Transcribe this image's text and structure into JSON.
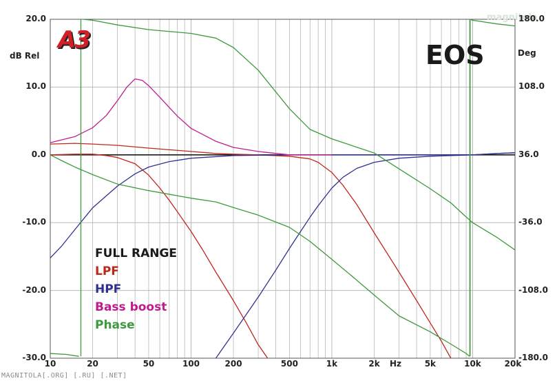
{
  "header": {
    "badge": "A3",
    "brand": "EOS",
    "watermark_top": "magnitola",
    "watermark_bottom": "MAGNITOLA[.ORG] [.RU] [.NET]"
  },
  "colors": {
    "full_range": "#1a1a1a",
    "lpf": "#c0271b",
    "hpf": "#2e3192",
    "bass_boost": "#c21a8e",
    "phase": "#3c9a3c",
    "badge_red": "#d21f26",
    "grid": "#b8b8b8"
  },
  "chart_data": {
    "type": "line",
    "x_scale": "log",
    "xlim": [
      10,
      20000
    ],
    "ylim": [
      -30,
      20
    ],
    "y2lim": [
      -180,
      180
    ],
    "ylabel": "dB Rel",
    "y2label": "Deg",
    "xlabel": "Hz",
    "x_tick_labels": [
      {
        "v": 10,
        "t": "10"
      },
      {
        "v": 20,
        "t": "20"
      },
      {
        "v": 50,
        "t": "50"
      },
      {
        "v": 100,
        "t": "100"
      },
      {
        "v": 200,
        "t": "200"
      },
      {
        "v": 500,
        "t": "500"
      },
      {
        "v": 1000,
        "t": "1k"
      },
      {
        "v": 2000,
        "t": "2k"
      },
      {
        "v": 5000,
        "t": "5k"
      },
      {
        "v": 10000,
        "t": "10k"
      },
      {
        "v": 20000,
        "t": "20k"
      }
    ],
    "y_tick_labels": [
      {
        "v": 20,
        "t": "20.0"
      },
      {
        "v": 10,
        "t": "10.0"
      },
      {
        "v": 0,
        "t": "0.0"
      },
      {
        "v": -10,
        "t": "-10.0"
      },
      {
        "v": -20,
        "t": "-20.0"
      },
      {
        "v": -30,
        "t": "-30.0"
      }
    ],
    "y2_tick_labels": [
      {
        "v": 180,
        "t": "180.0"
      },
      {
        "v": 108,
        "t": "108.0"
      },
      {
        "v": 36,
        "t": "36.0"
      },
      {
        "v": -36,
        "t": "-36.0"
      },
      {
        "v": -108,
        "t": "-108.0"
      },
      {
        "v": -180,
        "t": "-180.0"
      }
    ],
    "grid": true,
    "legend_position": "bottom-left",
    "series": [
      {
        "name": "FULL RANGE",
        "color_key": "full_range",
        "axis": "left",
        "points": [
          [
            10,
            0.0
          ],
          [
            20000,
            0.0
          ]
        ]
      },
      {
        "name": "LPF",
        "color_key": "lpf",
        "axis": "left",
        "points": [
          [
            10,
            1.6
          ],
          [
            15,
            1.7
          ],
          [
            20,
            1.6
          ],
          [
            30,
            1.4
          ],
          [
            50,
            1.0
          ],
          [
            100,
            0.5
          ],
          [
            150,
            0.2
          ],
          [
            200,
            0.1
          ],
          [
            300,
            0.0
          ],
          [
            500,
            -0.2
          ],
          [
            700,
            -0.6
          ],
          [
            800,
            -1.1
          ],
          [
            1000,
            -2.6
          ],
          [
            1200,
            -4.5
          ],
          [
            1500,
            -7.3
          ],
          [
            2000,
            -11.5
          ],
          [
            3000,
            -17.3
          ],
          [
            4000,
            -21.5
          ],
          [
            5000,
            -24.8
          ],
          [
            6000,
            -27.5
          ],
          [
            7000,
            -30.0
          ]
        ]
      },
      {
        "name": "LPF",
        "color_key": "lpf",
        "axis": "left",
        "points": [
          [
            10,
            0.0
          ],
          [
            15,
            0.1
          ],
          [
            20,
            0.1
          ],
          [
            25,
            -0.1
          ],
          [
            30,
            -0.4
          ],
          [
            40,
            -1.3
          ],
          [
            50,
            -3.0
          ],
          [
            60,
            -4.9
          ],
          [
            70,
            -6.7
          ],
          [
            80,
            -8.4
          ],
          [
            100,
            -11.3
          ],
          [
            120,
            -13.9
          ],
          [
            150,
            -17.3
          ],
          [
            200,
            -21.5
          ],
          [
            250,
            -25.0
          ],
          [
            300,
            -28.0
          ],
          [
            350,
            -30.0
          ]
        ]
      },
      {
        "name": "HPF",
        "color_key": "hpf",
        "axis": "left",
        "points": [
          [
            10,
            -15.2
          ],
          [
            12,
            -13.5
          ],
          [
            15,
            -11.0
          ],
          [
            20,
            -7.8
          ],
          [
            30,
            -4.6
          ],
          [
            40,
            -2.8
          ],
          [
            50,
            -1.8
          ],
          [
            70,
            -1.0
          ],
          [
            100,
            -0.5
          ],
          [
            200,
            -0.1
          ],
          [
            500,
            0.0
          ],
          [
            1000,
            0.0
          ],
          [
            5000,
            0.0
          ],
          [
            10000,
            0.0
          ],
          [
            15000,
            0.2
          ],
          [
            20000,
            0.3
          ]
        ]
      },
      {
        "name": "HPF",
        "color_key": "hpf",
        "axis": "left",
        "points": [
          [
            150,
            -30.0
          ],
          [
            200,
            -26.3
          ],
          [
            300,
            -21.0
          ],
          [
            400,
            -17.0
          ],
          [
            500,
            -13.8
          ],
          [
            600,
            -11.3
          ],
          [
            700,
            -9.2
          ],
          [
            800,
            -7.5
          ],
          [
            1000,
            -4.9
          ],
          [
            1200,
            -3.3
          ],
          [
            1500,
            -2.0
          ],
          [
            2000,
            -1.1
          ],
          [
            3000,
            -0.5
          ],
          [
            5000,
            -0.2
          ],
          [
            10000,
            0.0
          ],
          [
            15000,
            0.2
          ],
          [
            20000,
            0.3
          ]
        ]
      },
      {
        "name": "Bass boost",
        "color_key": "bass_boost",
        "axis": "left",
        "points": [
          [
            10,
            1.8
          ],
          [
            15,
            2.7
          ],
          [
            20,
            4.0
          ],
          [
            25,
            5.8
          ],
          [
            30,
            8.0
          ],
          [
            35,
            10.0
          ],
          [
            40,
            11.2
          ],
          [
            45,
            11.0
          ],
          [
            50,
            10.2
          ],
          [
            60,
            8.5
          ],
          [
            70,
            7.0
          ],
          [
            80,
            5.7
          ],
          [
            100,
            3.9
          ],
          [
            150,
            2.0
          ],
          [
            200,
            1.1
          ],
          [
            300,
            0.5
          ],
          [
            500,
            0.0
          ],
          [
            1000,
            0.0
          ]
        ]
      },
      {
        "name": "Phase",
        "color_key": "phase",
        "axis": "right",
        "points": [
          [
            17,
            180
          ],
          [
            20,
            179
          ],
          [
            30,
            174
          ],
          [
            50,
            169
          ],
          [
            100,
            165
          ],
          [
            150,
            160
          ],
          [
            200,
            150
          ],
          [
            300,
            126
          ],
          [
            500,
            85
          ],
          [
            700,
            63
          ],
          [
            1000,
            53
          ],
          [
            2000,
            38
          ],
          [
            5000,
            0
          ],
          [
            7000,
            -15
          ],
          [
            9000,
            -30
          ],
          [
            10000,
            -36
          ],
          [
            15000,
            -52
          ],
          [
            20000,
            -65
          ]
        ]
      },
      {
        "name": "Phase",
        "color_key": "phase",
        "axis": "right",
        "points": [
          [
            10,
            36
          ],
          [
            12,
            30
          ],
          [
            15,
            23
          ],
          [
            20,
            15
          ],
          [
            30,
            5
          ],
          [
            50,
            -2
          ],
          [
            100,
            -10
          ],
          [
            150,
            -14
          ],
          [
            200,
            -20
          ],
          [
            300,
            -28
          ],
          [
            500,
            -41
          ],
          [
            700,
            -56
          ],
          [
            1000,
            -75
          ],
          [
            1500,
            -97
          ],
          [
            2000,
            -113
          ],
          [
            3000,
            -135
          ],
          [
            5000,
            -152
          ],
          [
            7000,
            -165
          ],
          [
            9000,
            -175
          ],
          [
            9500,
            -178
          ]
        ]
      },
      {
        "name": "Phase",
        "color_key": "phase",
        "axis": "right",
        "points": [
          [
            10,
            -175
          ],
          [
            13,
            -176
          ],
          [
            16,
            -178
          ]
        ]
      },
      {
        "name": "Phase",
        "color_key": "phase",
        "axis": "right",
        "points": [
          [
            9600,
            180
          ],
          [
            10000,
            179
          ],
          [
            15000,
            175
          ],
          [
            20000,
            173
          ]
        ]
      }
    ]
  },
  "legend": {
    "items": [
      {
        "label": "FULL RANGE",
        "color_key": "full_range"
      },
      {
        "label": "LPF",
        "color_key": "lpf"
      },
      {
        "label": "HPF",
        "color_key": "hpf"
      },
      {
        "label": "Bass boost",
        "color_key": "bass_boost"
      },
      {
        "label": "Phase",
        "color_key": "phase"
      }
    ]
  }
}
